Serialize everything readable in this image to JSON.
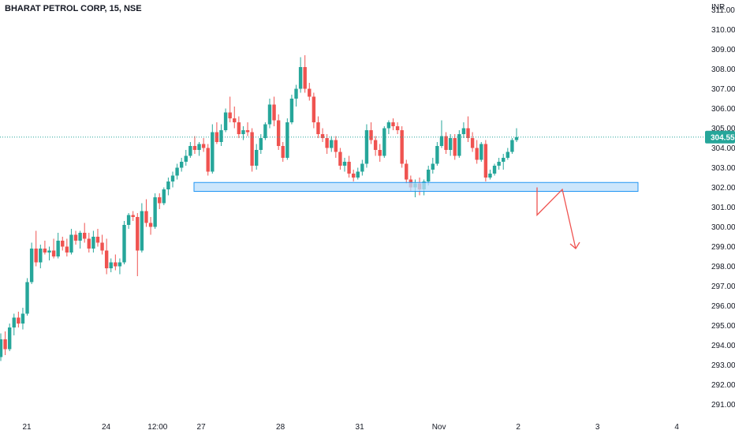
{
  "chart_data": {
    "type": "candlestick",
    "title": "BHARAT PETROL CORP, 15, NSE",
    "currency": "INR",
    "last_price": "304.55",
    "ylim": [
      290.3,
      311.5
    ],
    "y_ticks": [
      "311.00",
      "310.00",
      "309.00",
      "308.00",
      "307.00",
      "306.00",
      "305.00",
      "304.00",
      "303.00",
      "302.00",
      "301.00",
      "300.00",
      "299.00",
      "298.00",
      "297.00",
      "296.00",
      "295.00",
      "294.00",
      "293.00",
      "292.00",
      "291.00"
    ],
    "x_ticks": [
      "21",
      "24",
      "12:00",
      "27",
      "28",
      "31",
      "Nov",
      "2",
      "3",
      "4"
    ],
    "colors": {
      "up": "#26a69a",
      "down": "#ef5350",
      "zone_fill": "#bbdefb",
      "zone_border": "#2196f3",
      "projection": "#ef5350",
      "last_line": "#26a69a"
    },
    "support_zone": {
      "low": 301.8,
      "high": 302.25
    },
    "projection_path": [
      [
        0,
        302.0
      ],
      [
        1,
        300.6
      ],
      [
        2,
        301.9
      ],
      [
        3,
        298.9
      ]
    ],
    "candles": [
      [
        293.4,
        294.6,
        293.2,
        294.3
      ],
      [
        294.3,
        294.7,
        293.5,
        293.8
      ],
      [
        293.8,
        295.1,
        293.7,
        294.9
      ],
      [
        294.9,
        295.6,
        294.5,
        295.4
      ],
      [
        295.4,
        295.7,
        294.9,
        295.1
      ],
      [
        295.1,
        295.9,
        294.8,
        295.6
      ],
      [
        295.6,
        297.4,
        295.5,
        297.2
      ],
      [
        297.2,
        299.2,
        297.1,
        298.9
      ],
      [
        298.9,
        299.8,
        298.0,
        298.2
      ],
      [
        298.2,
        299.1,
        297.9,
        298.9
      ],
      [
        298.9,
        299.3,
        298.6,
        298.7
      ],
      [
        298.7,
        299.0,
        298.3,
        298.8
      ],
      [
        298.8,
        299.4,
        298.4,
        298.5
      ],
      [
        298.5,
        299.7,
        298.4,
        299.3
      ],
      [
        299.3,
        299.5,
        298.8,
        299.0
      ],
      [
        299.0,
        299.4,
        298.5,
        298.7
      ],
      [
        298.7,
        299.9,
        298.6,
        299.6
      ],
      [
        299.6,
        299.8,
        299.1,
        299.3
      ],
      [
        299.3,
        299.8,
        298.9,
        299.7
      ],
      [
        299.7,
        300.2,
        299.2,
        299.4
      ],
      [
        299.4,
        299.7,
        298.7,
        298.9
      ],
      [
        298.9,
        299.8,
        298.7,
        299.5
      ],
      [
        299.5,
        299.9,
        299.0,
        299.2
      ],
      [
        299.2,
        299.6,
        298.6,
        298.8
      ],
      [
        298.8,
        299.4,
        297.6,
        297.9
      ],
      [
        297.9,
        298.4,
        297.7,
        298.2
      ],
      [
        298.2,
        298.6,
        297.8,
        298.0
      ],
      [
        298.0,
        298.4,
        297.6,
        298.2
      ],
      [
        298.2,
        300.3,
        298.1,
        300.1
      ],
      [
        300.1,
        300.7,
        299.9,
        300.6
      ],
      [
        300.6,
        300.8,
        300.3,
        300.5
      ],
      [
        300.5,
        300.7,
        297.5,
        298.8
      ],
      [
        298.8,
        301.2,
        298.7,
        300.8
      ],
      [
        300.8,
        301.4,
        300.0,
        300.2
      ],
      [
        300.2,
        300.5,
        299.6,
        300.0
      ],
      [
        300.0,
        301.7,
        299.9,
        301.5
      ],
      [
        301.5,
        301.7,
        300.9,
        301.2
      ],
      [
        301.2,
        302.0,
        301.1,
        301.9
      ],
      [
        301.9,
        302.5,
        301.6,
        302.3
      ],
      [
        302.3,
        302.8,
        302.0,
        302.6
      ],
      [
        302.6,
        303.2,
        302.4,
        303.0
      ],
      [
        303.0,
        303.5,
        302.8,
        303.3
      ],
      [
        303.3,
        303.9,
        303.1,
        303.6
      ],
      [
        303.6,
        304.3,
        303.5,
        304.1
      ],
      [
        304.1,
        304.6,
        303.7,
        303.9
      ],
      [
        303.9,
        304.3,
        303.6,
        304.2
      ],
      [
        304.2,
        304.5,
        303.8,
        304.0
      ],
      [
        304.0,
        304.2,
        302.6,
        302.8
      ],
      [
        302.8,
        305.2,
        302.7,
        304.8
      ],
      [
        304.8,
        305.3,
        304.2,
        304.3
      ],
      [
        304.3,
        305.2,
        304.1,
        304.9
      ],
      [
        304.9,
        306.0,
        304.8,
        305.8
      ],
      [
        305.8,
        306.6,
        305.3,
        305.5
      ],
      [
        305.5,
        306.1,
        305.0,
        305.3
      ],
      [
        305.3,
        305.6,
        304.5,
        304.7
      ],
      [
        304.7,
        305.1,
        304.4,
        304.9
      ],
      [
        304.9,
        305.3,
        304.6,
        304.8
      ],
      [
        304.8,
        305.0,
        302.8,
        303.1
      ],
      [
        303.1,
        304.2,
        302.9,
        303.9
      ],
      [
        303.9,
        304.7,
        303.7,
        304.5
      ],
      [
        304.5,
        305.3,
        304.4,
        305.2
      ],
      [
        305.2,
        306.5,
        305.0,
        306.2
      ],
      [
        306.2,
        306.6,
        305.1,
        305.4
      ],
      [
        305.4,
        305.7,
        303.9,
        304.1
      ],
      [
        304.1,
        304.3,
        303.3,
        303.5
      ],
      [
        303.5,
        305.5,
        303.4,
        305.3
      ],
      [
        305.3,
        306.7,
        305.2,
        306.5
      ],
      [
        306.5,
        307.2,
        306.1,
        307.0
      ],
      [
        307.0,
        308.6,
        306.8,
        308.1
      ],
      [
        308.1,
        308.7,
        306.8,
        307.0
      ],
      [
        307.0,
        307.3,
        306.4,
        306.6
      ],
      [
        306.6,
        306.8,
        305.0,
        305.3
      ],
      [
        305.3,
        305.6,
        304.5,
        304.7
      ],
      [
        304.7,
        305.0,
        304.3,
        304.5
      ],
      [
        304.5,
        304.7,
        303.7,
        304.0
      ],
      [
        304.0,
        304.6,
        303.8,
        304.4
      ],
      [
        304.4,
        304.6,
        303.5,
        303.8
      ],
      [
        303.8,
        304.0,
        302.9,
        303.1
      ],
      [
        303.1,
        303.5,
        302.8,
        303.3
      ],
      [
        303.3,
        303.6,
        302.5,
        302.7
      ],
      [
        302.7,
        302.9,
        302.3,
        302.5
      ],
      [
        302.5,
        303.0,
        302.4,
        302.8
      ],
      [
        302.8,
        303.4,
        302.6,
        303.2
      ],
      [
        303.2,
        305.2,
        303.0,
        304.9
      ],
      [
        304.9,
        305.3,
        304.2,
        304.4
      ],
      [
        304.4,
        304.6,
        303.6,
        303.9
      ],
      [
        303.9,
        304.2,
        303.3,
        303.6
      ],
      [
        303.6,
        305.1,
        303.5,
        305.0
      ],
      [
        305.0,
        305.4,
        304.7,
        305.3
      ],
      [
        305.3,
        305.5,
        304.9,
        305.1
      ],
      [
        305.1,
        305.3,
        304.7,
        304.9
      ],
      [
        304.9,
        305.1,
        303.0,
        303.2
      ],
      [
        303.2,
        303.4,
        302.2,
        302.4
      ],
      [
        302.4,
        302.6,
        301.8,
        302.0
      ],
      [
        302.0,
        302.4,
        301.5,
        302.2
      ],
      [
        302.2,
        302.5,
        301.6,
        301.9
      ],
      [
        301.9,
        302.4,
        301.6,
        302.3
      ],
      [
        302.3,
        303.1,
        302.1,
        302.9
      ],
      [
        302.9,
        303.5,
        302.7,
        303.2
      ],
      [
        303.2,
        304.3,
        303.1,
        304.1
      ],
      [
        304.1,
        305.4,
        304.0,
        304.6
      ],
      [
        304.6,
        304.8,
        303.7,
        303.9
      ],
      [
        303.9,
        304.7,
        303.6,
        304.5
      ],
      [
        304.5,
        304.7,
        303.4,
        303.6
      ],
      [
        303.6,
        304.9,
        303.5,
        304.7
      ],
      [
        304.7,
        305.3,
        304.5,
        305.0
      ],
      [
        305.0,
        305.6,
        304.3,
        304.5
      ],
      [
        304.5,
        304.8,
        303.8,
        304.0
      ],
      [
        304.0,
        304.4,
        303.2,
        303.4
      ],
      [
        303.4,
        304.3,
        303.3,
        304.2
      ],
      [
        304.2,
        304.4,
        302.3,
        302.5
      ],
      [
        302.5,
        302.9,
        302.4,
        302.7
      ],
      [
        302.7,
        303.2,
        302.6,
        303.1
      ],
      [
        303.1,
        303.5,
        302.9,
        303.3
      ],
      [
        303.3,
        303.7,
        302.9,
        303.5
      ],
      [
        303.5,
        304.0,
        303.4,
        303.8
      ],
      [
        303.8,
        304.5,
        303.7,
        304.4
      ],
      [
        304.4,
        305.0,
        304.3,
        304.55
      ]
    ]
  }
}
